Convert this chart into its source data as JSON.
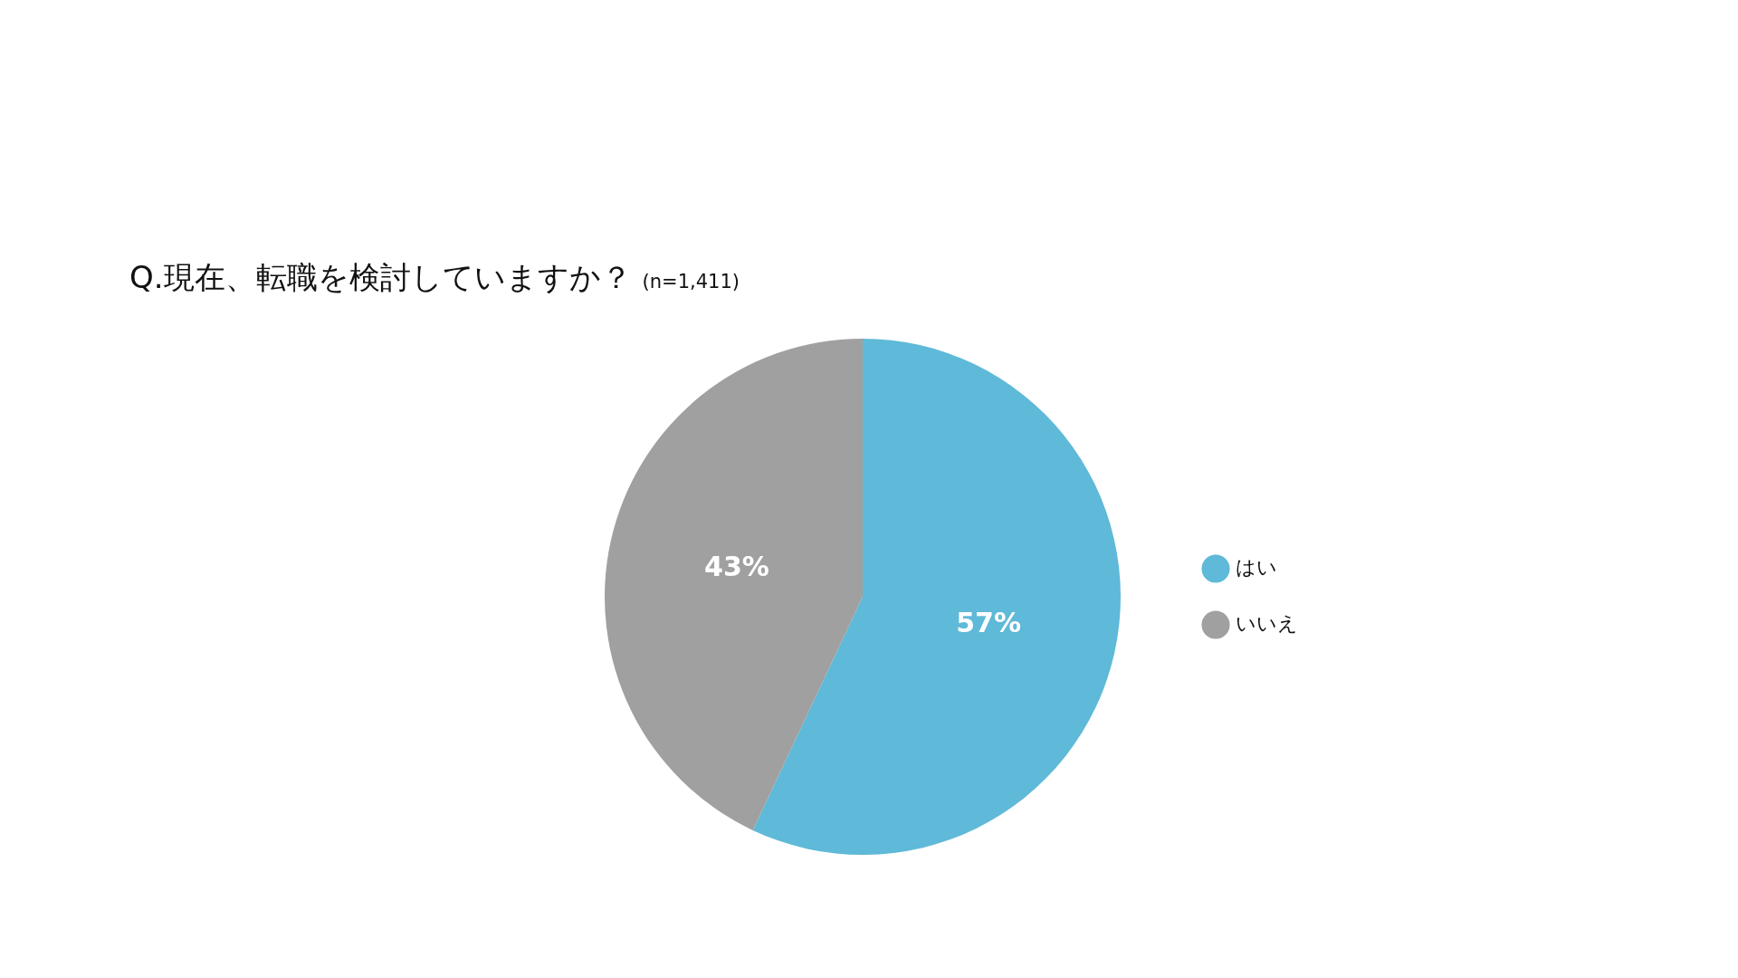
{
  "chart_data": {
    "type": "pie",
    "title": "Q.現在、転職を検討していますか？",
    "subtitle": "(n=1,411)",
    "categories": [
      "はい",
      "いいえ"
    ],
    "values": [
      57,
      43
    ],
    "colors": [
      "#5fb9d8",
      "#a0a0a0"
    ],
    "value_labels": [
      "57%",
      "43%"
    ],
    "legend": "right"
  }
}
